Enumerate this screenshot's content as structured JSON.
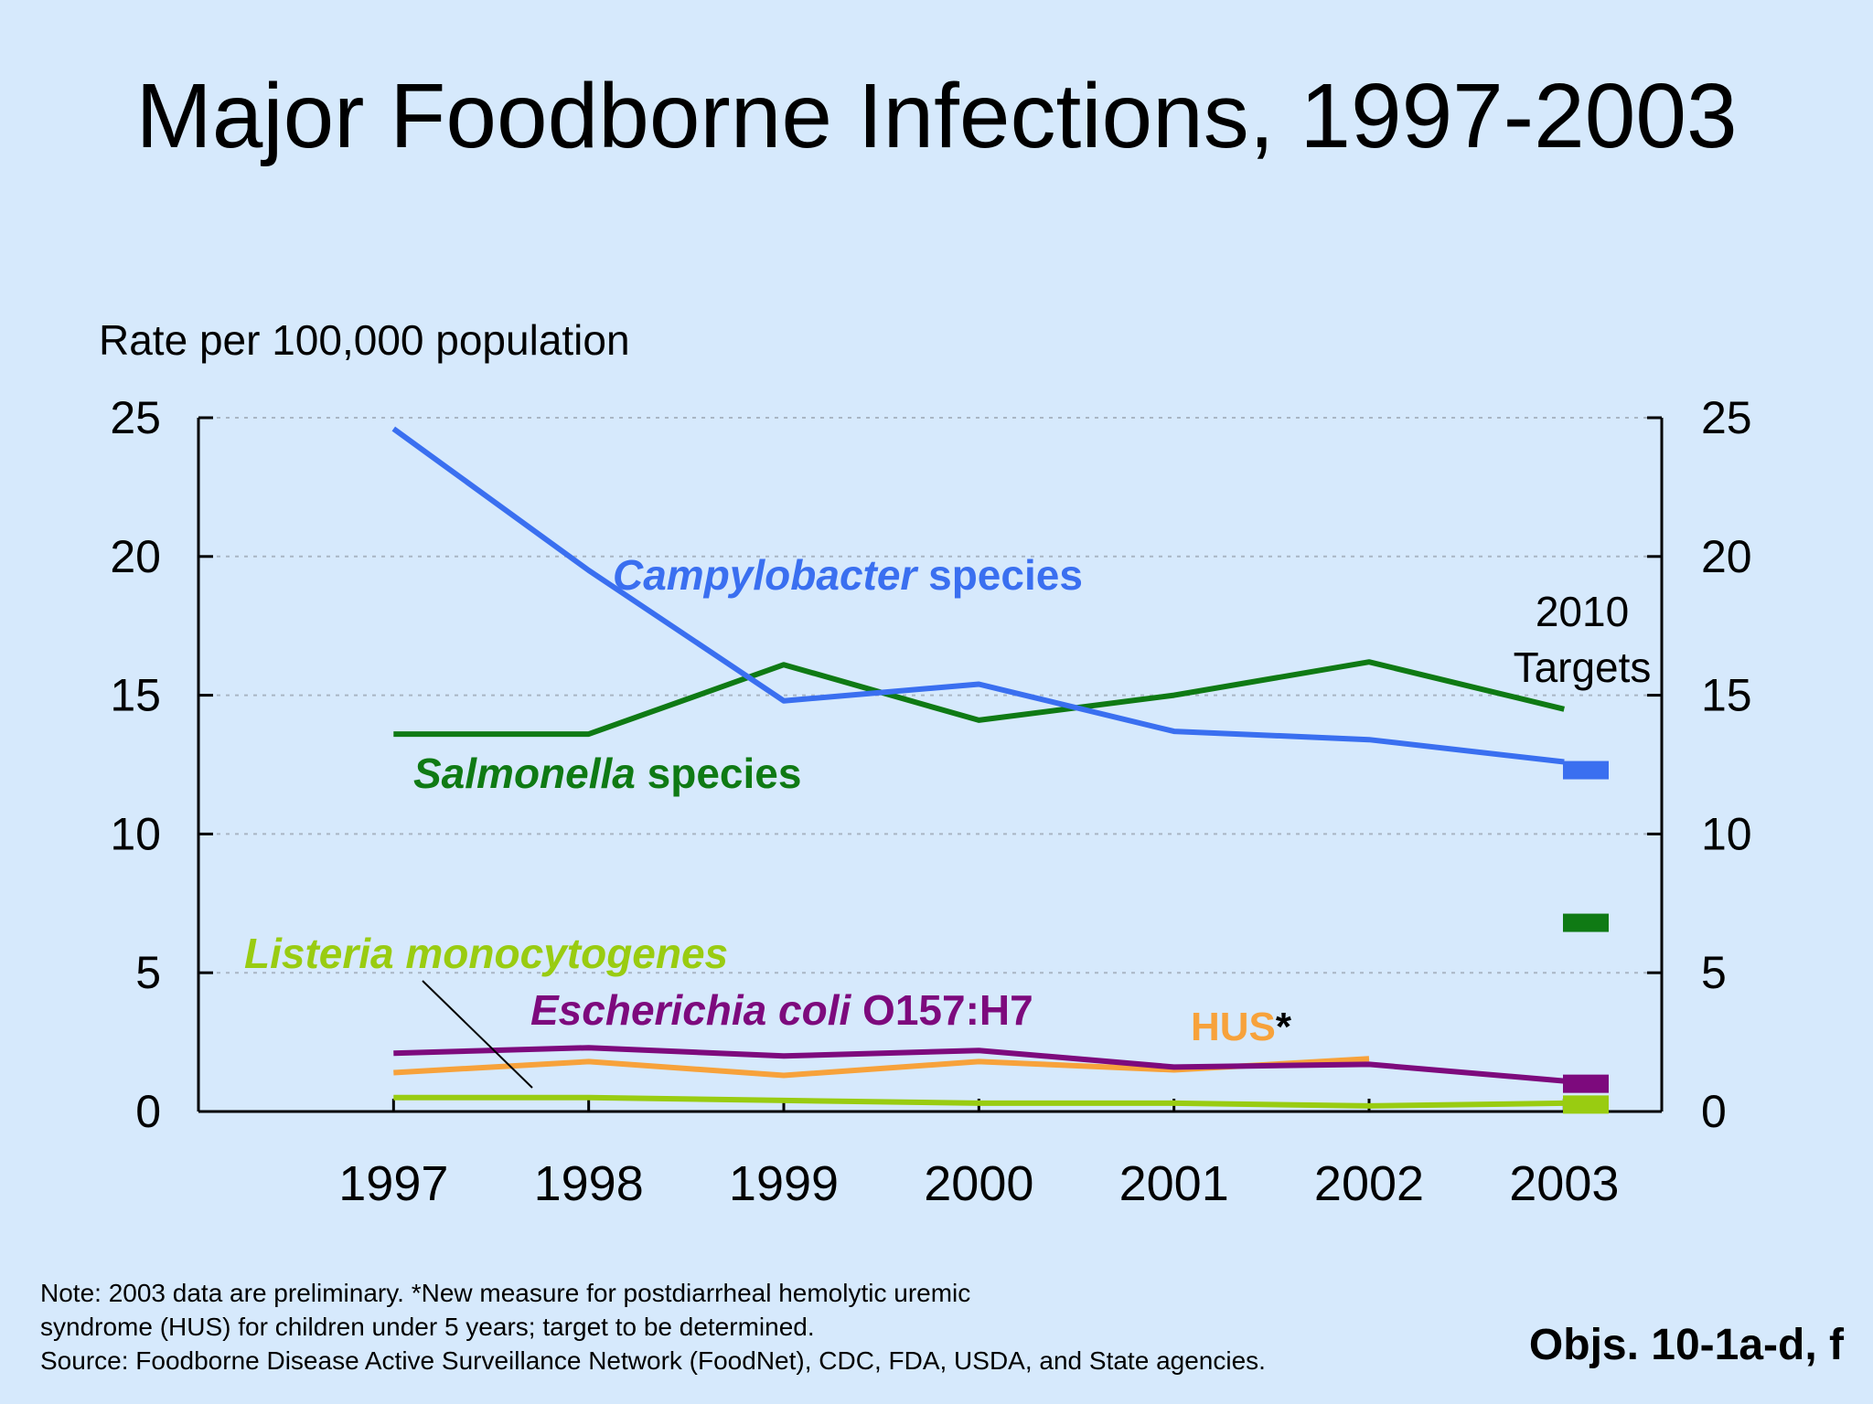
{
  "title": "Major Foodborne Infections, 1997-2003",
  "chart_data": {
    "type": "line",
    "title": "Major Foodborne Infections, 1997-2003",
    "ylabel": "Rate per 100,000 population",
    "xlabel": "",
    "x": [
      1997,
      1998,
      1999,
      2000,
      2001,
      2002,
      2003
    ],
    "xlim": [
      1996,
      2003.5
    ],
    "ylim": [
      0,
      25
    ],
    "yticks": [
      0,
      5,
      10,
      15,
      20,
      25
    ],
    "grid": "horizontal dotted",
    "dual_y_axis": true,
    "series": [
      {
        "name": "Campylobacter species",
        "name_parts": [
          "Campylobacter",
          " species"
        ],
        "color": "#3a6ff0",
        "x": [
          1997,
          1998,
          1999,
          2000,
          2001,
          2002,
          2003
        ],
        "values": [
          24.6,
          19.5,
          14.8,
          15.4,
          13.7,
          13.4,
          12.6
        ],
        "target": 12.3
      },
      {
        "name": "Salmonella species",
        "name_parts": [
          "Salmonella",
          " species"
        ],
        "color": "#0f7a14",
        "x": [
          1997,
          1998,
          1999,
          2000,
          2001,
          2002,
          2003
        ],
        "values": [
          13.6,
          13.6,
          16.1,
          14.1,
          15.0,
          16.2,
          14.5
        ],
        "target": 6.8
      },
      {
        "name": "Escherichia coli O157:H7",
        "name_parts": [
          "Escherichia coli",
          " O157:H7"
        ],
        "color": "#7d0a7d",
        "x": [
          1997,
          1998,
          1999,
          2000,
          2001,
          2002,
          2003
        ],
        "values": [
          2.1,
          2.3,
          2.0,
          2.2,
          1.6,
          1.7,
          1.1
        ],
        "target": 1.0
      },
      {
        "name": "HUS*",
        "name_parts": [
          "HUS",
          "*"
        ],
        "color": "#f7a23b",
        "x": [
          1997,
          1998,
          1999,
          2000,
          2001,
          2002
        ],
        "values": [
          1.4,
          1.8,
          1.3,
          1.8,
          1.5,
          1.9
        ],
        "target": null
      },
      {
        "name": "Listeria monocytogenes",
        "name_parts": [
          "Listeria monocytogenes",
          ""
        ],
        "color": "#99cc11",
        "x": [
          1997,
          1998,
          1999,
          2000,
          2001,
          2002,
          2003
        ],
        "values": [
          0.5,
          0.5,
          0.4,
          0.3,
          0.3,
          0.2,
          0.3
        ],
        "target": 0.25
      }
    ],
    "targets_label": [
      "2010",
      "Targets"
    ]
  },
  "notes": [
    "Note: 2003 data are preliminary.  *New measure for postdiarrheal hemolytic uremic",
    "syndrome (HUS) for children under 5 years; target to be determined.",
    "Source: Foodborne Disease Active Surveillance Network (FoodNet), CDC, FDA, USDA, and State agencies."
  ],
  "objectives": "Objs. 10-1a-d, f"
}
